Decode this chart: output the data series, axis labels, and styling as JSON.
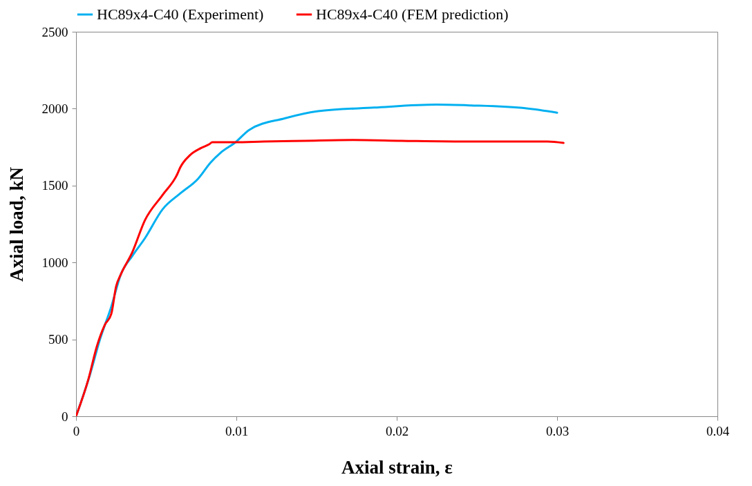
{
  "chart_data": {
    "type": "line",
    "xlabel": "Axial strain, ε",
    "ylabel": "Axial load, kN",
    "xlim": [
      0,
      0.04
    ],
    "xticks": [
      0,
      0.01,
      0.02,
      0.03,
      0.04
    ],
    "ylim": [
      0,
      2500
    ],
    "yticks": [
      0,
      500,
      1000,
      1500,
      2000,
      2500
    ],
    "grid": false,
    "legend": "top",
    "marker": "none",
    "line_style": "solid",
    "series": [
      {
        "name": "HC89x4-C40 (Experiment)",
        "color": "#00b0f0",
        "x": [
          0,
          0.00086,
          0.0015,
          0.0022,
          0.0028,
          0.0035,
          0.0043,
          0.0054,
          0.0065,
          0.0076,
          0.0084,
          0.009,
          0.00995,
          0.0108,
          0.013,
          0.0151,
          0.0186,
          0.0225,
          0.0246,
          0.0281,
          0.03
        ],
        "values": [
          0,
          267,
          502,
          713,
          924,
          1041,
          1158,
          1346,
          1449,
          1543,
          1651,
          1712,
          1782,
          1862,
          1937,
          1984,
          2007,
          2026,
          2021,
          2002,
          1974
        ]
      },
      {
        "name": "HC89x4-C40 (FEM prediction)",
        "color": "#ff0000",
        "x": [
          0,
          0.00078,
          0.0013,
          0.0018,
          0.0022,
          0.0025,
          0.0028,
          0.0035,
          0.0043,
          0.0054,
          0.0063,
          0.0065,
          0.0071,
          0.0078,
          0.0083,
          0.0085,
          0.0099,
          0.0117,
          0.0143,
          0.0173,
          0.0203,
          0.0246,
          0.0294,
          0.0304
        ],
        "values": [
          0,
          244,
          455,
          595,
          666,
          844,
          924,
          1064,
          1275,
          1439,
          1571,
          1618,
          1697,
          1744,
          1768,
          1782,
          1782,
          1786,
          1791,
          1796,
          1791,
          1786,
          1786,
          1777
        ]
      }
    ]
  }
}
